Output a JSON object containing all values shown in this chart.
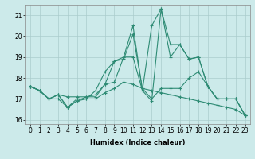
{
  "xlabel": "Humidex (Indice chaleur)",
  "background_color": "#cceaea",
  "grid_color": "#aacccc",
  "line_color": "#2e8b74",
  "xlim": [
    -0.5,
    23.5
  ],
  "ylim": [
    15.8,
    21.5
  ],
  "yticks": [
    16,
    17,
    18,
    19,
    20,
    21
  ],
  "xticks": [
    0,
    1,
    2,
    3,
    4,
    5,
    6,
    7,
    8,
    9,
    10,
    11,
    12,
    13,
    14,
    15,
    16,
    17,
    18,
    19,
    20,
    21,
    22,
    23
  ],
  "series": [
    [
      17.6,
      17.4,
      17.0,
      17.0,
      16.6,
      16.9,
      17.0,
      17.0,
      17.3,
      17.5,
      17.8,
      17.7,
      17.5,
      17.4,
      17.3,
      17.2,
      17.1,
      17.0,
      16.9,
      16.8,
      16.7,
      16.6,
      16.5,
      16.2
    ],
    [
      17.6,
      17.4,
      17.0,
      17.2,
      17.1,
      17.1,
      17.1,
      17.2,
      17.7,
      18.8,
      18.9,
      20.1,
      17.5,
      17.0,
      17.5,
      17.5,
      17.5,
      18.0,
      18.3,
      17.6,
      17.0,
      17.0,
      17.0,
      16.2
    ],
    [
      17.6,
      17.4,
      17.0,
      17.2,
      16.6,
      17.0,
      17.0,
      17.4,
      18.3,
      18.8,
      19.0,
      19.0,
      17.4,
      16.9,
      21.3,
      19.0,
      19.6,
      18.9,
      19.0,
      17.6,
      17.0,
      17.0,
      17.0,
      16.2
    ],
    [
      17.6,
      17.4,
      17.0,
      17.2,
      16.6,
      16.9,
      17.1,
      17.1,
      17.7,
      17.8,
      19.0,
      20.5,
      17.4,
      20.5,
      21.3,
      19.6,
      19.6,
      18.9,
      19.0,
      17.6,
      17.0,
      17.0,
      17.0,
      16.2
    ]
  ],
  "xlabel_fontsize": 6,
  "tick_fontsize": 5.5,
  "linewidth": 0.8,
  "markersize": 2.5
}
